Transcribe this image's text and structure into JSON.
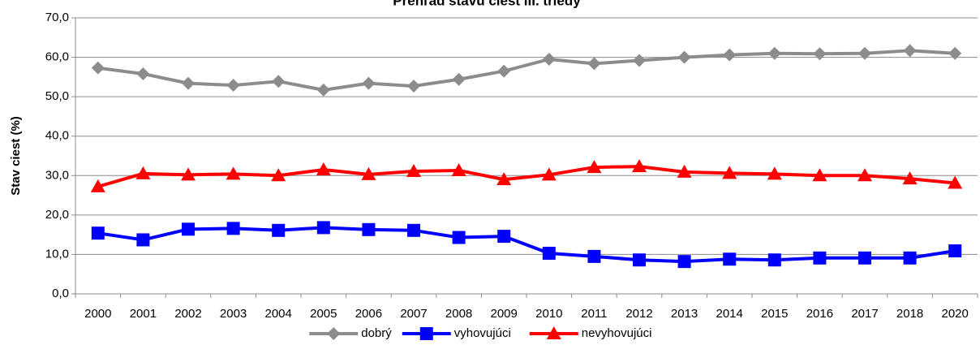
{
  "chart_data": {
    "type": "line",
    "title": "Prehľad stavu ciest III. triedy",
    "ylabel": "Stav ciest (%)",
    "categories": [
      "2000",
      "2001",
      "2002",
      "2003",
      "2004",
      "2005",
      "2006",
      "2007",
      "2008",
      "2009",
      "2010",
      "2011",
      "2012",
      "2013",
      "2014",
      "2015",
      "2016",
      "2017",
      "2018",
      "2020"
    ],
    "series": [
      {
        "name": "dobrý",
        "color": "#8c8c8c",
        "marker": "diamond",
        "values": [
          57.3,
          55.8,
          53.4,
          52.9,
          53.9,
          51.7,
          53.4,
          52.7,
          54.4,
          56.5,
          59.5,
          58.4,
          59.2,
          60.0,
          60.6,
          61.0,
          60.9,
          61.0,
          61.7,
          61.0
        ]
      },
      {
        "name": "vyhovujúci",
        "color": "#0000ff",
        "marker": "square",
        "values": [
          15.4,
          13.7,
          16.4,
          16.6,
          16.1,
          16.8,
          16.3,
          16.1,
          14.3,
          14.6,
          10.3,
          9.5,
          8.6,
          8.2,
          8.8,
          8.6,
          9.1,
          9.1,
          9.1,
          10.9
        ]
      },
      {
        "name": "nevyhovujúci",
        "color": "#ff0000",
        "marker": "triangle",
        "values": [
          27.2,
          30.5,
          30.2,
          30.4,
          30.0,
          31.5,
          30.3,
          31.1,
          31.3,
          29.0,
          30.2,
          32.1,
          32.3,
          30.9,
          30.6,
          30.4,
          30.0,
          30.0,
          29.2,
          28.1
        ]
      }
    ],
    "ylim": [
      0,
      70
    ],
    "yticks": [
      {
        "value": 0,
        "label": "0,0"
      },
      {
        "value": 10,
        "label": "10,0"
      },
      {
        "value": 20,
        "label": "20,0"
      },
      {
        "value": 30,
        "label": "30,0"
      },
      {
        "value": 40,
        "label": "40,0"
      },
      {
        "value": 50,
        "label": "50,0"
      },
      {
        "value": 60,
        "label": "60,0"
      },
      {
        "value": 70,
        "label": "70,0"
      }
    ],
    "grid": true,
    "legend": "bottom"
  }
}
